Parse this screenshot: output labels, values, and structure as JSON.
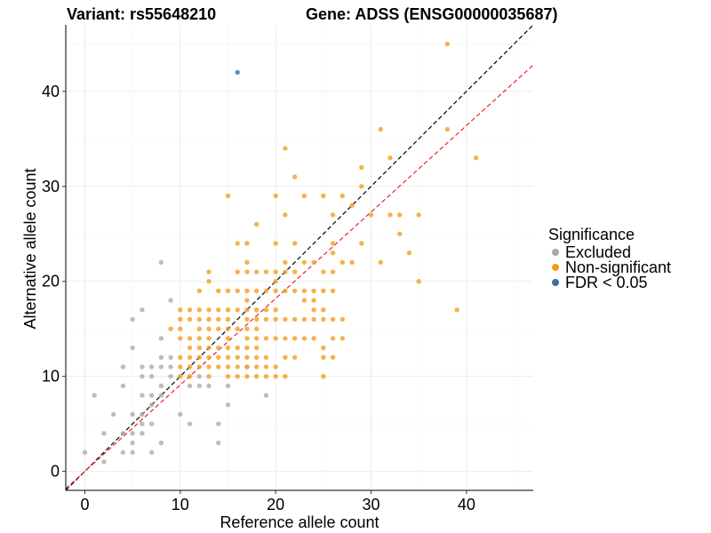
{
  "chart_data": {
    "type": "scatter",
    "title_left": "Variant: rs55648210",
    "title_right": "Gene: ADSS (ENSG00000035687)",
    "xlabel": "Reference allele count",
    "ylabel": "Alternative allele count",
    "xlim": [
      -2,
      47
    ],
    "ylim": [
      -2,
      47
    ],
    "xticks": [
      0,
      10,
      20,
      30,
      40
    ],
    "yticks": [
      0,
      10,
      20,
      30,
      40
    ],
    "grid": true,
    "legend": {
      "title": "Significance",
      "position": "right",
      "entries": [
        "Excluded",
        "Non-significant",
        "FDR < 0.05"
      ]
    },
    "colors": {
      "Excluded": "#aaaaaa",
      "Non-significant": "#f59b1a",
      "FDR < 0.05": "#3f6f9c",
      "identity_line": "#000000",
      "fit_line": "#e8272a"
    },
    "reference_lines": [
      {
        "name": "identity",
        "intercept": 0,
        "slope": 1.0,
        "style": "dashed"
      },
      {
        "name": "fit",
        "intercept": 0,
        "slope": 0.91,
        "style": "dashed"
      }
    ],
    "series": [
      {
        "name": "Excluded",
        "points": [
          [
            0,
            2
          ],
          [
            1,
            8
          ],
          [
            2,
            1
          ],
          [
            2,
            4
          ],
          [
            3,
            6
          ],
          [
            4,
            9
          ],
          [
            4,
            11
          ],
          [
            4,
            4
          ],
          [
            4,
            2
          ],
          [
            5,
            16
          ],
          [
            5,
            13
          ],
          [
            5,
            6
          ],
          [
            5,
            4
          ],
          [
            5,
            3
          ],
          [
            5,
            2
          ],
          [
            6,
            17
          ],
          [
            6,
            8
          ],
          [
            6,
            5
          ],
          [
            6,
            6
          ],
          [
            6,
            4
          ],
          [
            6,
            11
          ],
          [
            7,
            8
          ],
          [
            7,
            11
          ],
          [
            7,
            7
          ],
          [
            7,
            2
          ],
          [
            7,
            10
          ],
          [
            7,
            5
          ],
          [
            8,
            22
          ],
          [
            8,
            14
          ],
          [
            8,
            12
          ],
          [
            8,
            11
          ],
          [
            8,
            3
          ],
          [
            8,
            9
          ],
          [
            9,
            18
          ],
          [
            9,
            12
          ],
          [
            9,
            11
          ],
          [
            9,
            10
          ],
          [
            10,
            6
          ],
          [
            11,
            5
          ],
          [
            11,
            9
          ],
          [
            12,
            10
          ],
          [
            12,
            9
          ],
          [
            13,
            9
          ],
          [
            14,
            5
          ],
          [
            14,
            3
          ],
          [
            15,
            9
          ],
          [
            15,
            7
          ],
          [
            17,
            11
          ],
          [
            19,
            8
          ],
          [
            6,
            10
          ],
          [
            8,
            8
          ]
        ]
      },
      {
        "name": "Non-significant",
        "points": [
          [
            9,
            15
          ],
          [
            10,
            17
          ],
          [
            10,
            16
          ],
          [
            10,
            15
          ],
          [
            10,
            14
          ],
          [
            10,
            12
          ],
          [
            10,
            11
          ],
          [
            10,
            10
          ],
          [
            11,
            17
          ],
          [
            11,
            16
          ],
          [
            11,
            14
          ],
          [
            11,
            13
          ],
          [
            11,
            12
          ],
          [
            11,
            11
          ],
          [
            11,
            10
          ],
          [
            12,
            19
          ],
          [
            12,
            17
          ],
          [
            12,
            16
          ],
          [
            12,
            15
          ],
          [
            12,
            14
          ],
          [
            12,
            13
          ],
          [
            12,
            12
          ],
          [
            12,
            11
          ],
          [
            13,
            21
          ],
          [
            13,
            20
          ],
          [
            13,
            17
          ],
          [
            13,
            16
          ],
          [
            13,
            15
          ],
          [
            13,
            14
          ],
          [
            13,
            13
          ],
          [
            13,
            12
          ],
          [
            13,
            11
          ],
          [
            13,
            10
          ],
          [
            14,
            19
          ],
          [
            14,
            17
          ],
          [
            14,
            16
          ],
          [
            14,
            15
          ],
          [
            14,
            13
          ],
          [
            14,
            12
          ],
          [
            14,
            11
          ],
          [
            15,
            29
          ],
          [
            15,
            19
          ],
          [
            15,
            17
          ],
          [
            15,
            16
          ],
          [
            15,
            15
          ],
          [
            15,
            14
          ],
          [
            15,
            13
          ],
          [
            15,
            12
          ],
          [
            15,
            11
          ],
          [
            15,
            10
          ],
          [
            16,
            24
          ],
          [
            16,
            21
          ],
          [
            16,
            19
          ],
          [
            16,
            17
          ],
          [
            16,
            15
          ],
          [
            16,
            13
          ],
          [
            16,
            12
          ],
          [
            16,
            11
          ],
          [
            16,
            10
          ],
          [
            17,
            24
          ],
          [
            17,
            22
          ],
          [
            17,
            21
          ],
          [
            17,
            19
          ],
          [
            17,
            18
          ],
          [
            17,
            17
          ],
          [
            17,
            16
          ],
          [
            17,
            15
          ],
          [
            17,
            14
          ],
          [
            17,
            13
          ],
          [
            17,
            12
          ],
          [
            17,
            11
          ],
          [
            17,
            10
          ],
          [
            18,
            26
          ],
          [
            18,
            21
          ],
          [
            18,
            19
          ],
          [
            18,
            17
          ],
          [
            18,
            16
          ],
          [
            18,
            15
          ],
          [
            18,
            14
          ],
          [
            18,
            13
          ],
          [
            18,
            12
          ],
          [
            18,
            11
          ],
          [
            18,
            10
          ],
          [
            19,
            21
          ],
          [
            19,
            19
          ],
          [
            19,
            17
          ],
          [
            19,
            16
          ],
          [
            19,
            14
          ],
          [
            19,
            12
          ],
          [
            19,
            11
          ],
          [
            19,
            10
          ],
          [
            20,
            29
          ],
          [
            20,
            24
          ],
          [
            20,
            21
          ],
          [
            20,
            20
          ],
          [
            20,
            19
          ],
          [
            20,
            17
          ],
          [
            20,
            16
          ],
          [
            20,
            14
          ],
          [
            20,
            11
          ],
          [
            20,
            10
          ],
          [
            21,
            34
          ],
          [
            21,
            27
          ],
          [
            21,
            22
          ],
          [
            21,
            21
          ],
          [
            21,
            19
          ],
          [
            21,
            16
          ],
          [
            21,
            14
          ],
          [
            21,
            12
          ],
          [
            21,
            10
          ],
          [
            22,
            31
          ],
          [
            22,
            24
          ],
          [
            22,
            21
          ],
          [
            22,
            19
          ],
          [
            22,
            16
          ],
          [
            22,
            14
          ],
          [
            22,
            12
          ],
          [
            23,
            29
          ],
          [
            23,
            22
          ],
          [
            23,
            19
          ],
          [
            23,
            18
          ],
          [
            23,
            16
          ],
          [
            23,
            14
          ],
          [
            24,
            22
          ],
          [
            24,
            19
          ],
          [
            24,
            18
          ],
          [
            24,
            17
          ],
          [
            24,
            16
          ],
          [
            24,
            14
          ],
          [
            25,
            29
          ],
          [
            25,
            21
          ],
          [
            25,
            19
          ],
          [
            25,
            17
          ],
          [
            25,
            16
          ],
          [
            25,
            13
          ],
          [
            25,
            12
          ],
          [
            25,
            10
          ],
          [
            26,
            27
          ],
          [
            26,
            24
          ],
          [
            26,
            23
          ],
          [
            26,
            21
          ],
          [
            26,
            19
          ],
          [
            26,
            16
          ],
          [
            26,
            14
          ],
          [
            26,
            12
          ],
          [
            27,
            29
          ],
          [
            27,
            22
          ],
          [
            27,
            16
          ],
          [
            27,
            14
          ],
          [
            28,
            28
          ],
          [
            28,
            22
          ],
          [
            29,
            32
          ],
          [
            29,
            30
          ],
          [
            29,
            24
          ],
          [
            30,
            27
          ],
          [
            31,
            36
          ],
          [
            31,
            22
          ],
          [
            32,
            33
          ],
          [
            32,
            27
          ],
          [
            33,
            27
          ],
          [
            33,
            25
          ],
          [
            34,
            23
          ],
          [
            35,
            27
          ],
          [
            35,
            20
          ],
          [
            38,
            45
          ],
          [
            38,
            36
          ],
          [
            39,
            17
          ],
          [
            41,
            33
          ]
        ]
      },
      {
        "name": "FDR < 0.05",
        "points": [
          [
            16,
            42
          ]
        ]
      }
    ]
  }
}
